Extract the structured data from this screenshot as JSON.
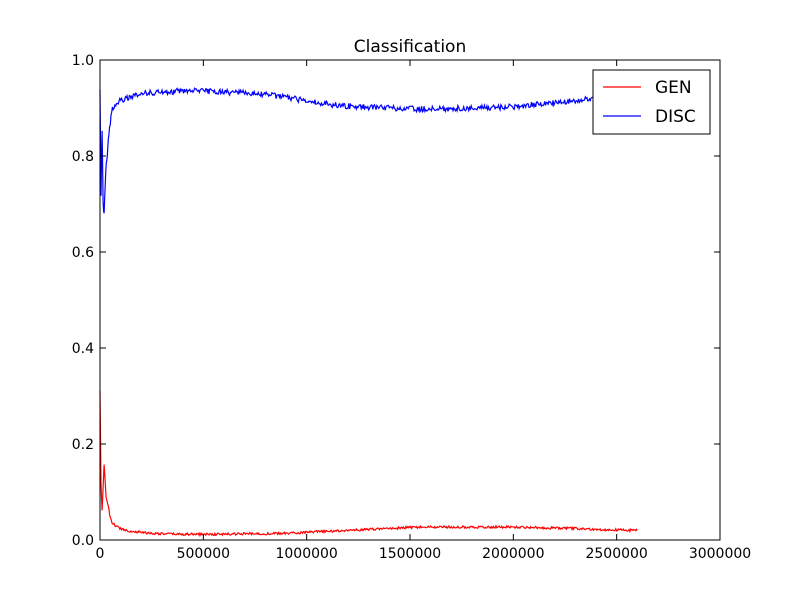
{
  "chart_data": {
    "type": "line",
    "title": "Classification",
    "xlabel": "",
    "ylabel": "",
    "xlim": [
      0,
      3000000
    ],
    "ylim": [
      0.0,
      1.0
    ],
    "x_ticks": [
      0,
      500000,
      1000000,
      1500000,
      2000000,
      2500000,
      3000000
    ],
    "x_tick_labels": [
      "0",
      "500000",
      "1000000",
      "1500000",
      "2000000",
      "2500000",
      "3000000"
    ],
    "y_ticks": [
      0.0,
      0.2,
      0.4,
      0.6,
      0.8,
      1.0
    ],
    "y_tick_labels": [
      "0.0",
      "0.2",
      "0.4",
      "0.6",
      "0.8",
      "1.0"
    ],
    "grid": false,
    "legend_position": "top-right",
    "series": [
      {
        "name": "GEN",
        "color": "#ff0000",
        "x": [
          0,
          5000,
          10000,
          20000,
          30000,
          40000,
          50000,
          60000,
          80000,
          100000,
          150000,
          200000,
          250000,
          300000,
          400000,
          500000,
          600000,
          700000,
          800000,
          900000,
          1000000,
          1100000,
          1200000,
          1300000,
          1400000,
          1500000,
          1600000,
          1700000,
          1800000,
          1900000,
          2000000,
          2100000,
          2200000,
          2300000,
          2400000,
          2500000,
          2600000
        ],
        "y": [
          0.31,
          0.12,
          0.06,
          0.155,
          0.09,
          0.07,
          0.045,
          0.035,
          0.028,
          0.024,
          0.018,
          0.016,
          0.014,
          0.013,
          0.012,
          0.012,
          0.012,
          0.013,
          0.013,
          0.014,
          0.016,
          0.018,
          0.02,
          0.022,
          0.024,
          0.026,
          0.027,
          0.027,
          0.027,
          0.027,
          0.027,
          0.026,
          0.025,
          0.024,
          0.022,
          0.021,
          0.02
        ]
      },
      {
        "name": "DISC",
        "color": "#0000ff",
        "x": [
          0,
          5000,
          10000,
          15000,
          20000,
          25000,
          30000,
          35000,
          40000,
          50000,
          60000,
          80000,
          100000,
          150000,
          200000,
          250000,
          300000,
          350000,
          400000,
          450000,
          500000,
          550000,
          600000,
          650000,
          700000,
          750000,
          800000,
          900000,
          1000000,
          1100000,
          1200000,
          1300000,
          1400000,
          1500000,
          1600000,
          1700000,
          1800000,
          1900000,
          2000000,
          2100000,
          2200000,
          2300000,
          2400000
        ],
        "y": [
          0.94,
          0.72,
          0.85,
          0.7,
          0.68,
          0.74,
          0.78,
          0.8,
          0.83,
          0.87,
          0.9,
          0.91,
          0.915,
          0.925,
          0.93,
          0.932,
          0.933,
          0.934,
          0.936,
          0.936,
          0.935,
          0.934,
          0.933,
          0.932,
          0.931,
          0.93,
          0.928,
          0.922,
          0.915,
          0.908,
          0.904,
          0.902,
          0.9,
          0.898,
          0.898,
          0.899,
          0.9,
          0.901,
          0.903,
          0.907,
          0.911,
          0.915,
          0.92
        ]
      }
    ]
  }
}
